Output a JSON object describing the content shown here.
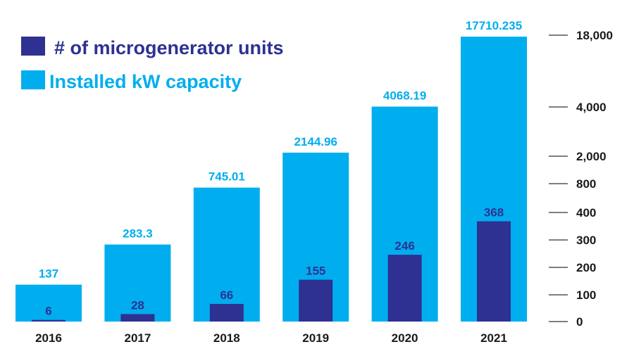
{
  "chart_data": {
    "type": "bar",
    "title": "",
    "xlabel": "",
    "ylabel": "",
    "categories": [
      "2016",
      "2017",
      "2018",
      "2019",
      "2020",
      "2021"
    ],
    "series": [
      {
        "name": "Installed kW capacity",
        "color": "#00AEEF",
        "values": [
          137,
          283.3,
          745.01,
          2144.96,
          4068.19,
          17710.235
        ],
        "labels": [
          "137",
          "283.3",
          "745.01",
          "2144.96",
          "4068.19",
          "17710.235"
        ]
      },
      {
        "name": "# of microgenerator units",
        "color": "#2E3192",
        "values": [
          6,
          28,
          66,
          155,
          246,
          368
        ],
        "labels": [
          "6",
          "28",
          "66",
          "155",
          "246",
          "368"
        ]
      }
    ],
    "y_axis": {
      "side": "right",
      "scale": "non-linear",
      "ticks": [
        {
          "value": 0,
          "label": "0"
        },
        {
          "value": 100,
          "label": "100"
        },
        {
          "value": 200,
          "label": "200"
        },
        {
          "value": 300,
          "label": "300"
        },
        {
          "value": 400,
          "label": "400"
        },
        {
          "value": 800,
          "label": "800"
        },
        {
          "value": 2000,
          "label": "2,000"
        },
        {
          "value": 4000,
          "label": "4,000"
        },
        {
          "value": 18000,
          "label": "18,000"
        }
      ]
    },
    "legend": {
      "position": "top-left",
      "items": [
        "# of microgenerator units",
        "Installed kW capacity"
      ]
    },
    "grid": false
  }
}
